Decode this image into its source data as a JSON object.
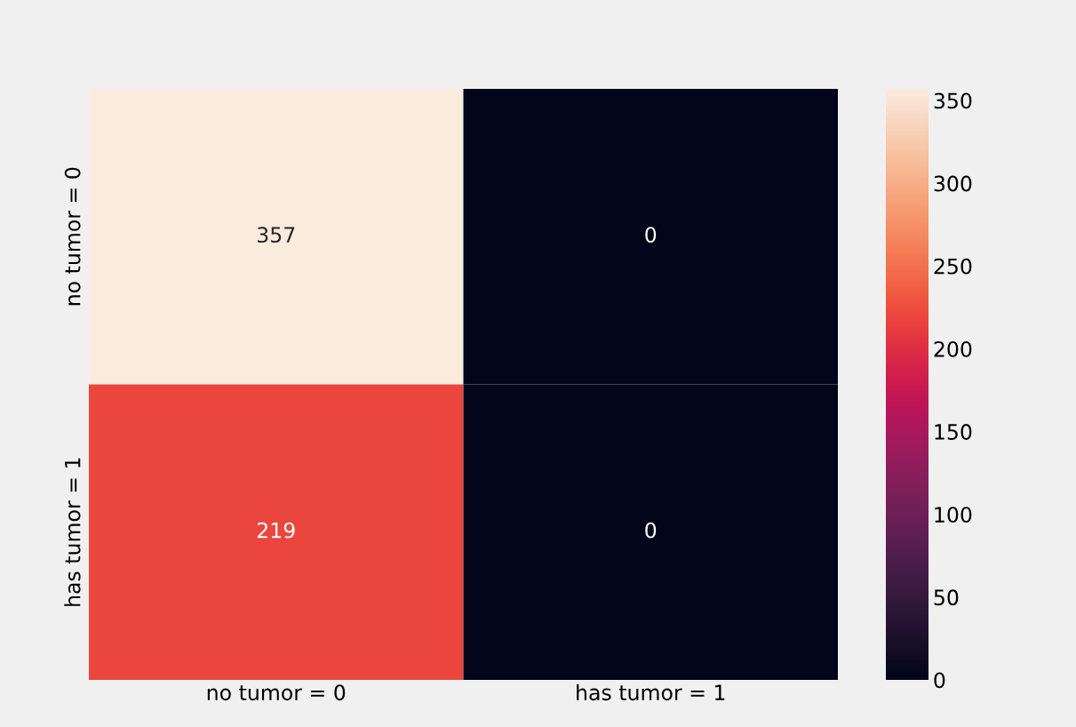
{
  "chart_data": {
    "type": "heatmap",
    "categories": [
      "no tumor = 0",
      "has tumor = 1"
    ],
    "y_categories": [
      "no tumor = 0",
      "has tumor = 1"
    ],
    "cells": [
      [
        357,
        0
      ],
      [
        219,
        0
      ]
    ],
    "clim": [
      0,
      357
    ],
    "cticks": [
      0,
      50,
      100,
      150,
      200,
      250,
      300,
      350
    ],
    "data_labels": true
  }
}
